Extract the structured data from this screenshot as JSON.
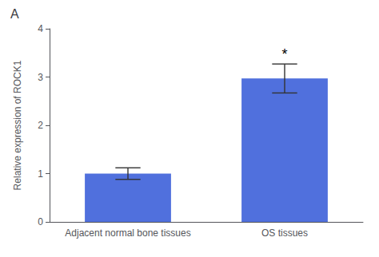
{
  "chart_data": {
    "type": "bar",
    "title": "A",
    "ylabel": "Relative expression of ROCK1",
    "categories": [
      "Adjacent normal bone tissues",
      "OS tissues"
    ],
    "values": [
      1.0,
      2.97
    ],
    "errors": [
      0.12,
      0.3
    ],
    "ylim": [
      0,
      4
    ],
    "yticks": [
      0,
      1,
      2,
      3,
      4
    ],
    "grid": false,
    "annotations": [
      {
        "text": "*",
        "category": "OS tissues"
      }
    ]
  }
}
